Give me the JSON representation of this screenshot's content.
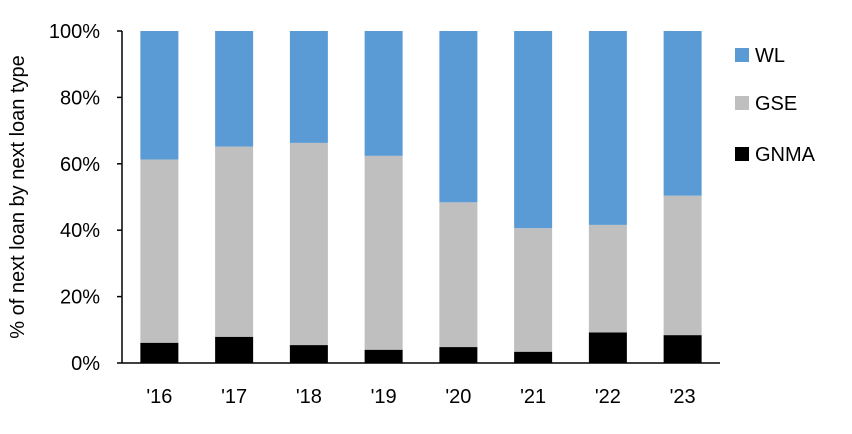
{
  "chart_data": {
    "type": "bar",
    "stacked": true,
    "categories": [
      "'16",
      "'17",
      "'18",
      "'19",
      "'20",
      "'21",
      "'22",
      "'23"
    ],
    "series": [
      {
        "name": "GNMA",
        "color": "#000000",
        "values": [
          6.1,
          7.9,
          5.4,
          4.0,
          4.8,
          3.4,
          9.2,
          8.4
        ]
      },
      {
        "name": "GSE",
        "color": "#BFBFBF",
        "values": [
          55.2,
          57.3,
          60.9,
          58.4,
          43.6,
          37.2,
          32.4,
          42.0
        ]
      },
      {
        "name": "WL",
        "color": "#5B9BD5",
        "values": [
          38.7,
          34.8,
          33.7,
          37.6,
          51.6,
          59.4,
          58.4,
          49.6
        ]
      }
    ],
    "ylabel": "% of next loan by next loan type",
    "xlabel": "",
    "ylim": [
      0,
      100
    ],
    "yticks": [
      "0%",
      "20%",
      "40%",
      "60%",
      "80%",
      "100%"
    ],
    "grid": false,
    "legend_position": "right",
    "legend_order": [
      "WL",
      "GSE",
      "GNMA"
    ]
  }
}
